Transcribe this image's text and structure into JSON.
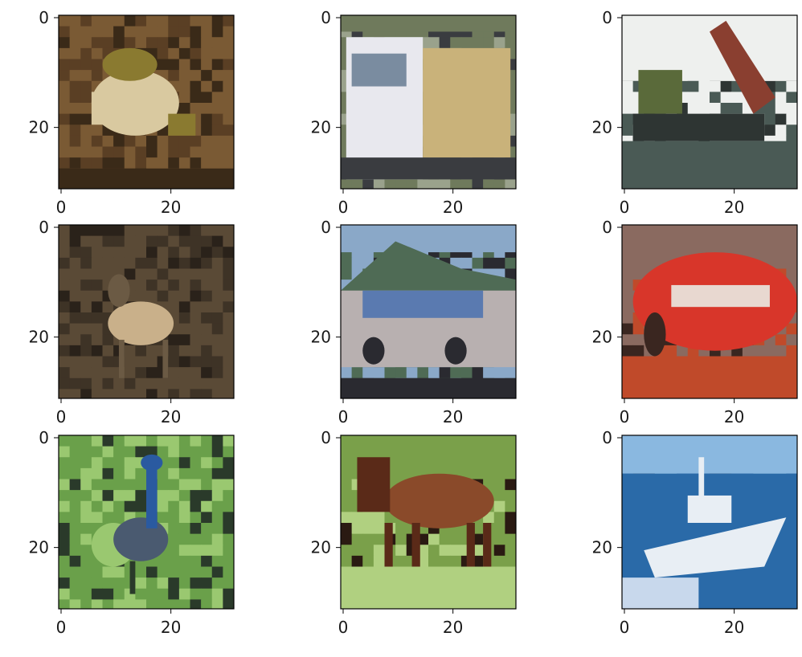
{
  "figure": {
    "rows": 3,
    "cols": 3,
    "background": "#ffffff",
    "axis_color": "#000000",
    "tick_text_color": "#1a1a1a"
  },
  "panels": [
    {
      "id": "frog",
      "depicts": "frog on brown ground",
      "palette": {
        "bg": "#7a5a34",
        "bg2": "#5a3f24",
        "subject": "#d9c9a0",
        "accent": "#8a7a30",
        "dark": "#3a2a18"
      },
      "xticks": [
        "0",
        "20"
      ],
      "yticks": [
        "0",
        "20"
      ]
    },
    {
      "id": "truck",
      "depicts": "white semi truck",
      "palette": {
        "bg": "#6f7a5c",
        "bg2": "#9aa28c",
        "subject": "#e8e8ee",
        "accent": "#c9b27a",
        "dark": "#3a3c40"
      },
      "xticks": [
        "0",
        "20"
      ],
      "yticks": [
        "0",
        "20"
      ]
    },
    {
      "id": "dump-truck",
      "depicts": "dump truck with raised bed",
      "palette": {
        "bg": "#eef0ee",
        "bg2": "#4a5a55",
        "subject": "#8a3f30",
        "accent": "#5a6a3a",
        "dark": "#2e3533"
      },
      "xticks": [
        "0",
        "20"
      ],
      "yticks": [
        "0",
        "20"
      ]
    },
    {
      "id": "deer",
      "depicts": "deer in dry brush",
      "palette": {
        "bg": "#5a4a36",
        "bg2": "#3e3326",
        "subject": "#c9b08a",
        "accent": "#6b5a44",
        "dark": "#2a221a"
      },
      "xticks": [
        "0",
        "20"
      ],
      "yticks": [
        "0",
        "20"
      ]
    },
    {
      "id": "car-silver",
      "depicts": "silver station wagon with hills",
      "palette": {
        "bg": "#8aa8c8",
        "bg2": "#4f6b55",
        "subject": "#b8b0b0",
        "accent": "#5a7ab0",
        "dark": "#2a2a30"
      },
      "xticks": [
        "0",
        "20"
      ],
      "yticks": [
        "0",
        "20"
      ]
    },
    {
      "id": "car-red",
      "depicts": "red sports car",
      "palette": {
        "bg": "#8a6a60",
        "bg2": "#c04a2a",
        "subject": "#d8362a",
        "accent": "#e8d8d0",
        "dark": "#3a2620"
      },
      "xticks": [
        "0",
        "20"
      ],
      "yticks": [
        "0",
        "20"
      ]
    },
    {
      "id": "bird",
      "depicts": "blue-grey bird in green foliage",
      "palette": {
        "bg": "#6aa04a",
        "bg2": "#9ac870",
        "subject": "#4a5a70",
        "accent": "#2a5aa0",
        "dark": "#2a3a2a"
      },
      "xticks": [
        "0",
        "20"
      ],
      "yticks": [
        "0",
        "20"
      ]
    },
    {
      "id": "horse",
      "depicts": "brown horse on grass",
      "palette": {
        "bg": "#7aa04a",
        "bg2": "#b0d080",
        "subject": "#8a4a2a",
        "accent": "#5a2a18",
        "dark": "#2a1a12"
      },
      "xticks": [
        "0",
        "20"
      ],
      "yticks": [
        "0",
        "20"
      ]
    },
    {
      "id": "boat",
      "depicts": "white motor boat on blue water",
      "palette": {
        "bg": "#2a6aa8",
        "bg2": "#8ab8e0",
        "subject": "#e8eef4",
        "accent": "#1a4a80",
        "dark": "#2a3a50"
      },
      "xticks": [
        "0",
        "20"
      ],
      "yticks": [
        "0",
        "20"
      ]
    }
  ]
}
